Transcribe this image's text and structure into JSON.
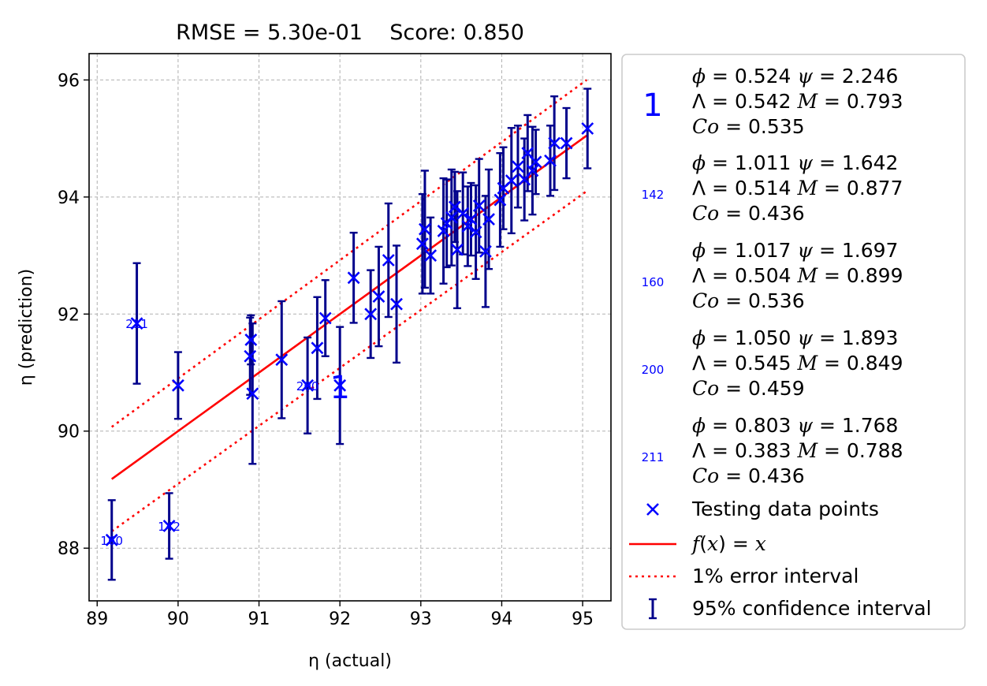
{
  "chart_data": {
    "type": "scatter",
    "title": "RMSE = 5.30e-01    Score: 0.850",
    "xlabel": "η (actual)",
    "ylabel": "η (prediction)",
    "xlim": [
      88.9,
      95.35
    ],
    "ylim": [
      87.1,
      96.45
    ],
    "xticks": [
      89,
      90,
      91,
      92,
      93,
      94,
      95
    ],
    "yticks": [
      88,
      90,
      92,
      94,
      96
    ],
    "grid": true,
    "legend_position": "outside-right",
    "colors": {
      "points": "#0000ff",
      "errorbars": "#00008b",
      "identity": "#ff0000",
      "error_band": "#ff0000",
      "annotation": "#0000ff"
    },
    "identity_line": {
      "label": "f(x) = x",
      "x_range": [
        89.18,
        95.05
      ]
    },
    "error_band": {
      "label": "1% error interval",
      "percent": 1
    },
    "series": [
      {
        "name": "Testing data points",
        "marker": "x",
        "points": [
          [
            89.18,
            88.14,
            0.68
          ],
          [
            89.49,
            91.84,
            1.03
          ],
          [
            89.89,
            88.38,
            0.56
          ],
          [
            90.0,
            90.78,
            0.57
          ],
          [
            90.89,
            91.28,
            0.66
          ],
          [
            90.9,
            91.56,
            0.42
          ],
          [
            90.92,
            90.64,
            1.2
          ],
          [
            91.28,
            91.22,
            1.0
          ],
          [
            91.6,
            90.78,
            0.82
          ],
          [
            91.72,
            91.42,
            0.87
          ],
          [
            91.82,
            91.93,
            0.65
          ],
          [
            92.0,
            90.78,
            1.0
          ],
          [
            92.17,
            92.62,
            0.77
          ],
          [
            92.38,
            92.0,
            0.75
          ],
          [
            92.48,
            92.3,
            0.85
          ],
          [
            92.6,
            92.92,
            0.97
          ],
          [
            92.7,
            92.17,
            1.0
          ],
          [
            93.02,
            93.2,
            0.85
          ],
          [
            93.05,
            93.45,
            1.0
          ],
          [
            93.12,
            93.0,
            0.65
          ],
          [
            93.28,
            93.42,
            0.9
          ],
          [
            93.32,
            93.55,
            0.75
          ],
          [
            93.38,
            93.65,
            0.82
          ],
          [
            93.42,
            93.83,
            0.6
          ],
          [
            93.45,
            93.1,
            1.0
          ],
          [
            93.52,
            93.72,
            0.7
          ],
          [
            93.58,
            93.5,
            0.68
          ],
          [
            93.62,
            93.62,
            0.62
          ],
          [
            93.68,
            93.4,
            0.8
          ],
          [
            93.72,
            93.85,
            0.8
          ],
          [
            93.8,
            93.07,
            0.95
          ],
          [
            93.84,
            93.62,
            0.85
          ],
          [
            93.98,
            93.95,
            0.8
          ],
          [
            94.02,
            94.15,
            0.7
          ],
          [
            94.12,
            94.28,
            0.9
          ],
          [
            94.2,
            94.52,
            0.7
          ],
          [
            94.28,
            94.3,
            0.7
          ],
          [
            94.32,
            94.75,
            0.65
          ],
          [
            94.38,
            94.45,
            0.75
          ],
          [
            94.42,
            94.6,
            0.55
          ],
          [
            94.6,
            94.62,
            0.6
          ],
          [
            94.65,
            94.92,
            0.8
          ],
          [
            94.8,
            94.92,
            0.6
          ],
          [
            95.06,
            95.17,
            0.68
          ]
        ]
      }
    ],
    "annotations": [
      {
        "text": "1",
        "x": 92.0,
        "y": 90.78,
        "size": "large"
      },
      {
        "text": "142",
        "x": 89.89,
        "y": 88.38,
        "size": "small"
      },
      {
        "text": "160",
        "x": 89.18,
        "y": 88.14,
        "size": "small"
      },
      {
        "text": "200",
        "x": 91.6,
        "y": 90.78,
        "size": "small"
      },
      {
        "text": "211",
        "x": 89.49,
        "y": 91.84,
        "size": "small"
      }
    ],
    "legend": {
      "highlighted": [
        {
          "id": "1",
          "phi": "0.524",
          "psi": "2.246",
          "lambda": "0.542",
          "m": "0.793",
          "co": "0.535"
        },
        {
          "id": "142",
          "phi": "1.011",
          "psi": "1.642",
          "lambda": "0.514",
          "m": "0.877",
          "co": "0.436"
        },
        {
          "id": "160",
          "phi": "1.017",
          "psi": "1.697",
          "lambda": "0.504",
          "m": "0.899",
          "co": "0.536"
        },
        {
          "id": "200",
          "phi": "1.050",
          "psi": "1.893",
          "lambda": "0.545",
          "m": "0.849",
          "co": "0.459"
        },
        {
          "id": "211",
          "phi": "0.803",
          "psi": "1.768",
          "lambda": "0.383",
          "m": "0.788",
          "co": "0.436"
        }
      ],
      "entries": [
        {
          "key": "points",
          "label": "Testing data points"
        },
        {
          "key": "identity",
          "label": "f(x) = x"
        },
        {
          "key": "error_band",
          "label": "1% error interval"
        },
        {
          "key": "errorbars",
          "label": "95% confidence interval"
        }
      ]
    }
  }
}
